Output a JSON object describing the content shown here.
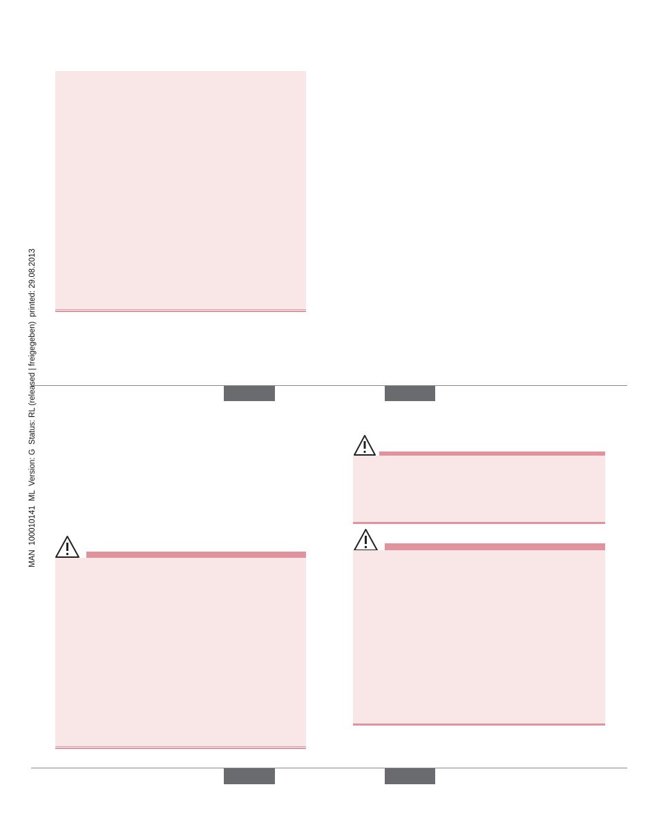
{
  "sidebar": {
    "text": "MAN  100010141  ML  Version: G  Status: RL (released | freigegeben)  printed: 29.08.2013"
  }
}
